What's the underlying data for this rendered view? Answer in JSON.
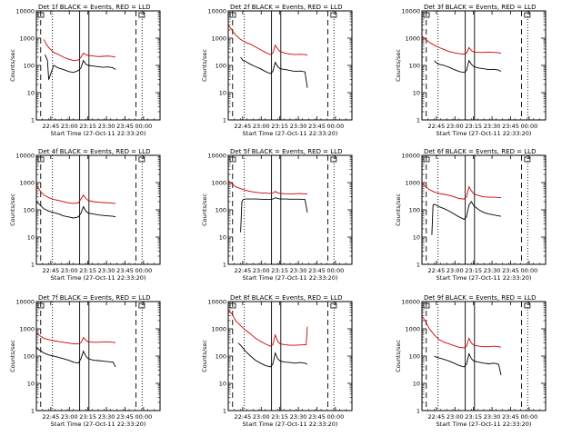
{
  "chart_data": {
    "type": "line",
    "title_template": "Det {det}f BLACK = Events, RED = LLD",
    "ylabel": "Counts/sec",
    "xlabel": "Start Time (27-Oct-11 22:33:20)",
    "yscale": "log",
    "ylim": [
      1,
      10000
    ],
    "y_ticks": [
      "1",
      "10",
      "100",
      "1000",
      "10000"
    ],
    "x_range_min": [
      0,
      100
    ],
    "x_ticks": [
      {
        "label": "22:45",
        "t": 11.67
      },
      {
        "label": "23:00",
        "t": 26.67
      },
      {
        "label": "23:15",
        "t": 41.67
      },
      {
        "label": "23:30",
        "t": 56.67
      },
      {
        "label": "23:45",
        "t": 71.67
      },
      {
        "label": "00:00",
        "t": 86.67
      }
    ],
    "colors": {
      "events": "#000000",
      "lld": "#cc0000",
      "frame": "#000000"
    },
    "panels": [
      {
        "det": "1",
        "row": 0,
        "col": 0,
        "vlines": [
          {
            "t": 3.5,
            "style": "dashed"
          },
          {
            "t": 13,
            "style": "dotted"
          },
          {
            "t": 35,
            "style": "solid"
          },
          {
            "t": 42.5,
            "style": "solid"
          },
          {
            "t": 80.5,
            "style": "dashed"
          },
          {
            "t": 85.5,
            "style": "dotted"
          }
        ],
        "lld": {
          "t": [
            6,
            8,
            10,
            14,
            18,
            22,
            26,
            30,
            34,
            36,
            38,
            40,
            42,
            46,
            50,
            54,
            58,
            62,
            64
          ],
          "v": [
            900,
            600,
            450,
            300,
            250,
            200,
            170,
            150,
            160,
            200,
            280,
            250,
            230,
            220,
            210,
            215,
            220,
            210,
            200
          ]
        },
        "events": {
          "t": [
            7,
            9,
            10,
            14,
            18,
            22,
            26,
            30,
            34,
            36,
            38,
            40,
            42,
            46,
            50,
            54,
            58,
            62,
            64
          ],
          "v": [
            250,
            150,
            30,
            100,
            80,
            70,
            60,
            55,
            65,
            80,
            150,
            110,
            100,
            95,
            90,
            85,
            88,
            82,
            70
          ]
        }
      },
      {
        "det": "2",
        "row": 0,
        "col": 1,
        "vlines": [
          {
            "t": 3.5,
            "style": "dashed"
          },
          {
            "t": 13,
            "style": "dotted"
          },
          {
            "t": 35,
            "style": "solid"
          },
          {
            "t": 42.5,
            "style": "solid"
          },
          {
            "t": 80.5,
            "style": "dashed"
          },
          {
            "t": 85.5,
            "style": "dotted"
          }
        ],
        "lld": {
          "t": [
            0,
            3,
            6,
            10,
            14,
            18,
            22,
            26,
            30,
            34,
            36,
            38,
            40,
            42,
            46,
            50,
            54,
            58,
            62,
            64
          ],
          "v": [
            3000,
            2000,
            1300,
            900,
            700,
            600,
            480,
            380,
            300,
            250,
            280,
            550,
            400,
            320,
            280,
            260,
            250,
            255,
            250,
            240
          ]
        },
        "events": {
          "t": [
            10,
            12,
            14,
            18,
            22,
            26,
            30,
            34,
            36,
            38,
            40,
            42,
            46,
            50,
            54,
            58,
            62,
            64
          ],
          "v": [
            200,
            150,
            140,
            110,
            90,
            75,
            60,
            50,
            60,
            130,
            90,
            75,
            70,
            65,
            60,
            62,
            58,
            15
          ]
        }
      },
      {
        "det": "3",
        "row": 0,
        "col": 2,
        "vlines": [
          {
            "t": 3.5,
            "style": "dashed"
          },
          {
            "t": 13,
            "style": "dotted"
          },
          {
            "t": 35,
            "style": "solid"
          },
          {
            "t": 42.5,
            "style": "solid"
          },
          {
            "t": 80.5,
            "style": "dashed"
          },
          {
            "t": 85.5,
            "style": "dotted"
          }
        ],
        "lld": {
          "t": [
            0,
            3,
            6,
            10,
            14,
            18,
            22,
            26,
            30,
            34,
            36,
            38,
            40,
            42,
            46,
            50,
            54,
            58,
            62,
            64
          ],
          "v": [
            1200,
            900,
            700,
            550,
            450,
            380,
            320,
            290,
            270,
            260,
            280,
            450,
            350,
            310,
            300,
            300,
            310,
            300,
            290,
            280
          ]
        },
        "events": {
          "t": [
            10,
            12,
            14,
            18,
            22,
            26,
            30,
            34,
            36,
            38,
            40,
            42,
            46,
            50,
            54,
            58,
            62,
            64
          ],
          "v": [
            150,
            120,
            110,
            100,
            85,
            70,
            60,
            55,
            65,
            150,
            110,
            90,
            80,
            75,
            70,
            72,
            68,
            60
          ]
        }
      },
      {
        "det": "4",
        "row": 1,
        "col": 0,
        "vlines": [
          {
            "t": 3.5,
            "style": "dashed"
          },
          {
            "t": 13,
            "style": "dotted"
          },
          {
            "t": 35,
            "style": "solid"
          },
          {
            "t": 42.5,
            "style": "solid"
          },
          {
            "t": 80.5,
            "style": "dashed"
          },
          {
            "t": 85.5,
            "style": "dotted"
          }
        ],
        "lld": {
          "t": [
            0,
            3,
            6,
            10,
            14,
            18,
            22,
            26,
            30,
            34,
            36,
            38,
            40,
            42,
            46,
            50,
            54,
            58,
            62,
            64
          ],
          "v": [
            800,
            500,
            350,
            280,
            240,
            220,
            200,
            180,
            170,
            180,
            250,
            350,
            260,
            220,
            200,
            190,
            185,
            180,
            175,
            170
          ]
        },
        "events": {
          "t": [
            0,
            3,
            6,
            10,
            14,
            18,
            22,
            26,
            30,
            34,
            36,
            38,
            40,
            42,
            46,
            50,
            54,
            58,
            62,
            64
          ],
          "v": [
            200,
            150,
            110,
            90,
            80,
            70,
            60,
            55,
            50,
            55,
            75,
            130,
            90,
            75,
            70,
            65,
            62,
            60,
            58,
            55
          ]
        }
      },
      {
        "det": "5",
        "row": 1,
        "col": 1,
        "vlines": [
          {
            "t": 3.5,
            "style": "dashed"
          },
          {
            "t": 13,
            "style": "dotted"
          },
          {
            "t": 35,
            "style": "solid"
          },
          {
            "t": 42.5,
            "style": "solid"
          },
          {
            "t": 80.5,
            "style": "dashed"
          },
          {
            "t": 85.5,
            "style": "dotted"
          }
        ],
        "lld": {
          "t": [
            0,
            3,
            6,
            10,
            14,
            18,
            22,
            26,
            30,
            34,
            36,
            38,
            40,
            42,
            46,
            50,
            54,
            58,
            62,
            64
          ],
          "v": [
            1200,
            900,
            700,
            600,
            520,
            470,
            440,
            420,
            410,
            400,
            410,
            470,
            420,
            400,
            390,
            385,
            390,
            395,
            385,
            380
          ]
        },
        "events": {
          "t": [
            10,
            11,
            12,
            14,
            18,
            22,
            26,
            30,
            34,
            36,
            38,
            40,
            42,
            46,
            50,
            54,
            58,
            62,
            64
          ],
          "v": [
            15,
            200,
            240,
            250,
            250,
            250,
            245,
            240,
            240,
            250,
            280,
            260,
            250,
            250,
            245,
            245,
            245,
            240,
            80
          ]
        }
      },
      {
        "det": "6",
        "row": 1,
        "col": 2,
        "vlines": [
          {
            "t": 3.5,
            "style": "dashed"
          },
          {
            "t": 13,
            "style": "dotted"
          },
          {
            "t": 35,
            "style": "solid"
          },
          {
            "t": 42.5,
            "style": "solid"
          },
          {
            "t": 80.5,
            "style": "dashed"
          },
          {
            "t": 85.5,
            "style": "dotted"
          }
        ],
        "lld": {
          "t": [
            0,
            3,
            6,
            10,
            14,
            18,
            22,
            26,
            30,
            34,
            36,
            38,
            40,
            42,
            46,
            50,
            54,
            58,
            62,
            64
          ],
          "v": [
            1000,
            700,
            550,
            450,
            400,
            370,
            340,
            300,
            260,
            250,
            300,
            700,
            500,
            380,
            330,
            300,
            290,
            290,
            285,
            280
          ]
        },
        "events": {
          "t": [
            8,
            9,
            10,
            14,
            18,
            22,
            26,
            30,
            34,
            36,
            38,
            40,
            42,
            46,
            50,
            54,
            58,
            62,
            64
          ],
          "v": [
            12,
            150,
            160,
            130,
            110,
            90,
            70,
            55,
            45,
            55,
            150,
            200,
            140,
            100,
            80,
            70,
            65,
            60,
            58
          ]
        }
      },
      {
        "det": "7",
        "row": 2,
        "col": 0,
        "vlines": [
          {
            "t": 3.5,
            "style": "dashed"
          },
          {
            "t": 13,
            "style": "dotted"
          },
          {
            "t": 35,
            "style": "solid"
          },
          {
            "t": 42.5,
            "style": "solid"
          },
          {
            "t": 80.5,
            "style": "dashed"
          },
          {
            "t": 85.5,
            "style": "dotted"
          }
        ],
        "lld": {
          "t": [
            0,
            3,
            6,
            10,
            14,
            18,
            22,
            26,
            30,
            34,
            36,
            38,
            40,
            42,
            46,
            50,
            54,
            58,
            62,
            64
          ],
          "v": [
            700,
            550,
            450,
            400,
            370,
            340,
            320,
            300,
            280,
            280,
            310,
            480,
            380,
            330,
            320,
            320,
            330,
            330,
            320,
            310
          ]
        },
        "events": {
          "t": [
            0,
            3,
            6,
            10,
            14,
            18,
            22,
            26,
            30,
            34,
            36,
            38,
            40,
            42,
            46,
            50,
            54,
            58,
            62,
            64
          ],
          "v": [
            200,
            160,
            130,
            110,
            100,
            90,
            80,
            70,
            60,
            55,
            80,
            150,
            100,
            80,
            70,
            68,
            65,
            62,
            60,
            40
          ]
        }
      },
      {
        "det": "8",
        "row": 2,
        "col": 1,
        "vlines": [
          {
            "t": 3.5,
            "style": "dashed"
          },
          {
            "t": 13,
            "style": "dotted"
          },
          {
            "t": 35,
            "style": "solid"
          },
          {
            "t": 42.5,
            "style": "solid"
          },
          {
            "t": 80.5,
            "style": "dashed"
          },
          {
            "t": 85.5,
            "style": "dotted"
          }
        ],
        "lld": {
          "t": [
            0,
            3,
            6,
            10,
            14,
            18,
            22,
            26,
            30,
            34,
            36,
            38,
            40,
            42,
            46,
            50,
            54,
            58,
            62,
            63,
            64
          ],
          "v": [
            5000,
            3500,
            2000,
            1300,
            900,
            650,
            450,
            350,
            280,
            230,
            260,
            600,
            350,
            280,
            260,
            250,
            250,
            255,
            260,
            260,
            1200
          ]
        },
        "events": {
          "t": [
            8,
            10,
            14,
            18,
            22,
            26,
            30,
            34,
            36,
            38,
            40,
            42,
            46,
            50,
            54,
            58,
            62,
            64
          ],
          "v": [
            300,
            250,
            150,
            100,
            70,
            55,
            45,
            40,
            50,
            130,
            80,
            65,
            60,
            58,
            55,
            58,
            55,
            50
          ]
        }
      },
      {
        "det": "9",
        "row": 2,
        "col": 2,
        "vlines": [
          {
            "t": 3.5,
            "style": "dashed"
          },
          {
            "t": 13,
            "style": "dotted"
          },
          {
            "t": 35,
            "style": "solid"
          },
          {
            "t": 42.5,
            "style": "solid"
          },
          {
            "t": 80.5,
            "style": "dashed"
          },
          {
            "t": 85.5,
            "style": "dotted"
          }
        ],
        "lld": {
          "t": [
            0,
            3,
            6,
            10,
            14,
            18,
            22,
            26,
            30,
            34,
            36,
            38,
            40,
            42,
            46,
            50,
            54,
            58,
            62,
            64
          ],
          "v": [
            3000,
            1800,
            1000,
            600,
            400,
            320,
            280,
            240,
            210,
            200,
            230,
            450,
            300,
            250,
            230,
            220,
            220,
            230,
            220,
            210
          ]
        },
        "events": {
          "t": [
            10,
            12,
            14,
            18,
            22,
            26,
            30,
            34,
            36,
            38,
            40,
            42,
            46,
            50,
            54,
            58,
            62,
            64
          ],
          "v": [
            100,
            90,
            85,
            75,
            65,
            55,
            45,
            40,
            50,
            120,
            80,
            65,
            60,
            55,
            52,
            55,
            50,
            20
          ]
        }
      }
    ]
  }
}
